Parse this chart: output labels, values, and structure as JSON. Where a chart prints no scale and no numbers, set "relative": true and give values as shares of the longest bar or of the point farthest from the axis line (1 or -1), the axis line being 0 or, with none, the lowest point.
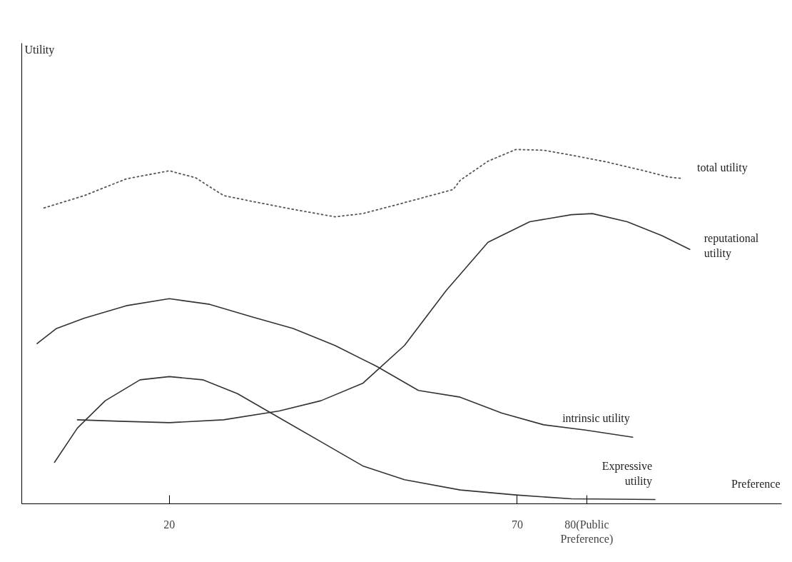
{
  "chart_data": {
    "type": "line",
    "relative": true,
    "xlabel": "Preference",
    "annotations": [
      "Utility"
    ],
    "xlim": [
      -1.2,
      108
    ],
    "xticks": [
      20,
      70,
      {
        "value": 80,
        "label": "80(Public\nPreference)"
      }
    ],
    "grid": false,
    "legend": false,
    "marker": "none",
    "series": [
      {
        "name": "total utility",
        "color": "#555555",
        "line_style": "dotted",
        "x": [
          2,
          7.8,
          13.8,
          20,
          23.8,
          27.8,
          31.8,
          37.8,
          43.8,
          47.8,
          53.8,
          60.8,
          61.8,
          65.8,
          69.8,
          73.8,
          77.8,
          82.8,
          87.8,
          91.8,
          93.8
        ],
        "values": [
          0.835,
          0.87,
          0.917,
          0.94,
          0.92,
          0.87,
          0.854,
          0.831,
          0.81,
          0.819,
          0.85,
          0.887,
          0.913,
          0.967,
          1,
          0.998,
          0.984,
          0.965,
          0.942,
          0.922,
          0.918
        ]
      },
      {
        "name": "reputational\nutility",
        "color": "#333333",
        "line_style": "solid",
        "x": [
          6.8,
          12.8,
          20,
          27.8,
          35.8,
          41.8,
          47.8,
          53.8,
          59.8,
          65.8,
          71.8,
          77.8,
          80.8,
          85.8,
          90.8,
          94.8
        ],
        "values": [
          0.237,
          0.233,
          0.229,
          0.237,
          0.262,
          0.291,
          0.34,
          0.447,
          0.602,
          0.738,
          0.796,
          0.816,
          0.819,
          0.796,
          0.757,
          0.718
        ]
      },
      {
        "name": "intrinsic utility",
        "color": "#333333",
        "line_style": "solid",
        "x": [
          1,
          3.8,
          7.8,
          13.8,
          20,
          25.8,
          31.8,
          37.8,
          43.8,
          49.8,
          55.8,
          61.8,
          67.8,
          73.8,
          79.8,
          86.6
        ],
        "values": [
          0.452,
          0.495,
          0.524,
          0.559,
          0.579,
          0.563,
          0.528,
          0.495,
          0.447,
          0.388,
          0.32,
          0.301,
          0.256,
          0.223,
          0.208,
          0.188
        ]
      },
      {
        "name": "Expressive\nutility",
        "color": "#333333",
        "line_style": "solid",
        "x": [
          3.5,
          6.8,
          10.8,
          15.8,
          20,
          24.8,
          29.8,
          35.8,
          41.8,
          47.8,
          53.8,
          61.8,
          69.8,
          77.8,
          89.8
        ],
        "values": [
          0.117,
          0.214,
          0.291,
          0.35,
          0.359,
          0.35,
          0.311,
          0.243,
          0.175,
          0.107,
          0.068,
          0.039,
          0.025,
          0.014,
          0.012
        ]
      }
    ]
  }
}
